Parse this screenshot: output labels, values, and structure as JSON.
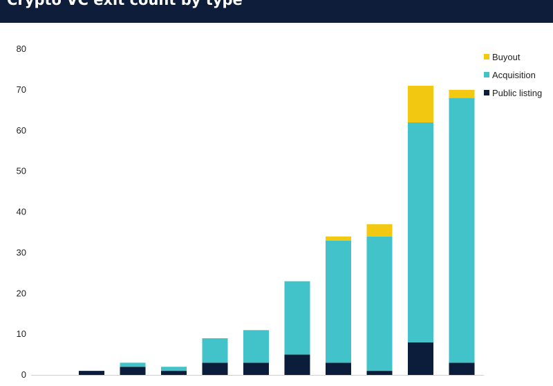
{
  "header": {
    "title": "Crypto VC exit count by type"
  },
  "colors": {
    "header_bg": "#0e1e3a",
    "buyout": "#f2c811",
    "acquisition": "#41c3c9",
    "public_listing": "#0b1d3b"
  },
  "chart_data": {
    "type": "bar",
    "stacked": true,
    "title": "Crypto VC exit count by type",
    "xlabel": "",
    "ylabel": "",
    "ylim": [
      0,
      80
    ],
    "yticks": [
      0,
      10,
      20,
      30,
      40,
      50,
      60,
      70,
      80
    ],
    "grid": false,
    "legend_position": "top-right",
    "categories": [
      "",
      "",
      "",
      "",
      "",
      "",
      "",
      "",
      "",
      "",
      ""
    ],
    "series": [
      {
        "name": "Public listing",
        "color": "#0b1d3b",
        "values": [
          0,
          1,
          2,
          1,
          3,
          3,
          5,
          3,
          1,
          8,
          3
        ]
      },
      {
        "name": "Acquisition",
        "color": "#41c3c9",
        "values": [
          0,
          0,
          1,
          1,
          6,
          8,
          18,
          30,
          33,
          54,
          65
        ]
      },
      {
        "name": "Buyout",
        "color": "#f2c811",
        "values": [
          0,
          0,
          0,
          0,
          0,
          0,
          0,
          1,
          3,
          9,
          2
        ]
      }
    ],
    "legend": [
      "Buyout",
      "Acquisition",
      "Public listing"
    ]
  }
}
